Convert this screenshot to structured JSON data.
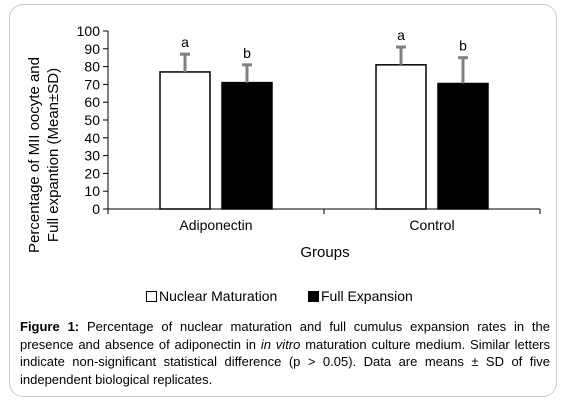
{
  "chart_data": {
    "type": "bar",
    "categories": [
      "Adiponectin",
      "Control"
    ],
    "series": [
      {
        "name": "Nuclear Maturation",
        "values": [
          77,
          81
        ],
        "errors": [
          10,
          10
        ],
        "letters": [
          "a",
          "a"
        ],
        "color": "#ffffff"
      },
      {
        "name": "Full Expansion",
        "values": [
          71,
          70.5
        ],
        "errors": [
          10,
          14.5
        ],
        "letters": [
          "b",
          "b"
        ],
        "color": "#000000"
      }
    ],
    "xlabel": "Groups",
    "ylabel_lines": [
      "Percentage of MII oocyte and",
      "Full expantion (Mean±SD)"
    ],
    "ylim": [
      0,
      100
    ],
    "yticks": [
      0,
      10,
      20,
      30,
      40,
      50,
      60,
      70,
      80,
      90,
      100
    ],
    "error_bar_color": "#808080",
    "grid": false,
    "legend_position": "bottom"
  },
  "caption": {
    "label": "Figure 1:",
    "before_italic": " Percentage of nuclear maturation and full cumulus expansion rates in the presence and absence of adiponectin in ",
    "italic": "in vitro",
    "after_italic": " maturation culture medium. Similar letters indicate non-significant statistical difference (p > 0.05). Data are means ± SD of five independent biological replicates."
  }
}
